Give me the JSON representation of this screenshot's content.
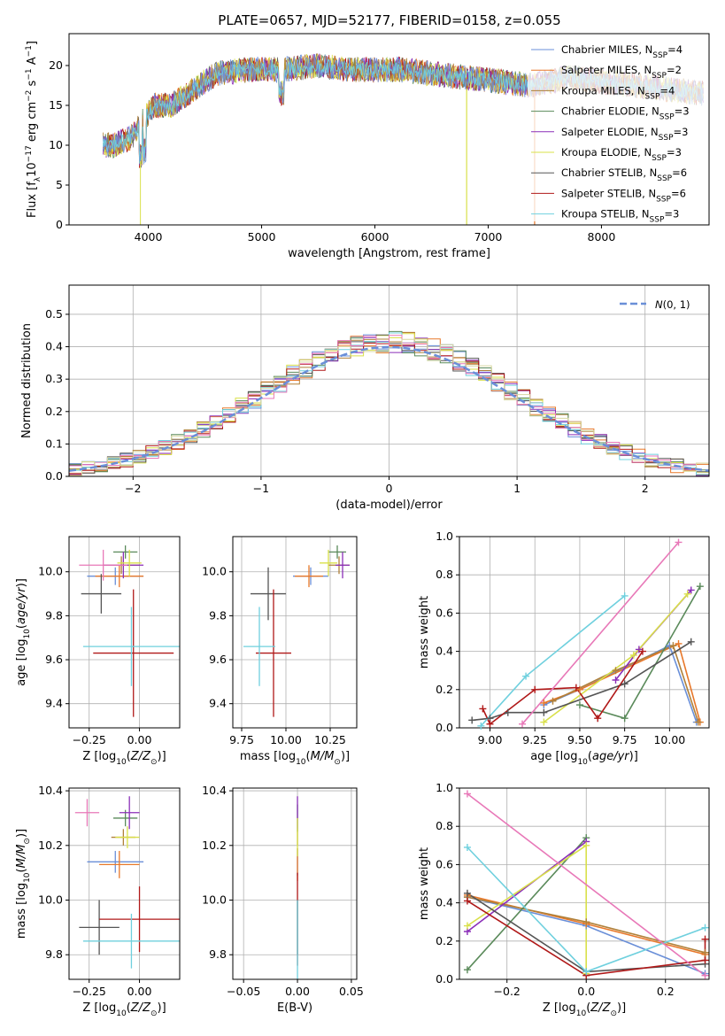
{
  "title": "PLATE=0657, MJD=52177, FIBERID=0158, z=0.055",
  "colors": [
    "#6a8fd8",
    "#e8782a",
    "#b0813a",
    "#5a8a5a",
    "#8b2fb8",
    "#d9e04a",
    "#555555",
    "#b01818",
    "#6fd0de",
    "#e878b8",
    "#d8d8a0"
  ],
  "chart_data": [
    {
      "id": "spectrum",
      "type": "line",
      "xlabel": "wavelength [Angstrom, rest frame]",
      "ylabel": "Flux [f_λ10^-17 erg cm^-2 s^-1 A^-1]",
      "xlim": [
        3300,
        8950
      ],
      "ylim": [
        0,
        24
      ],
      "xticks": [
        4000,
        5000,
        6000,
        7000,
        8000
      ],
      "yticks": [
        0,
        5,
        10,
        15,
        20
      ],
      "grid": false,
      "legend_position": "top-right",
      "legend": [
        "Chabrier MILES, N_SSP=4",
        "Salpeter MILES, N_SSP=2",
        "Kroupa MILES, N_SSP=4",
        "Chabrier ELODIE, N_SSP=3",
        "Salpeter ELODIE, N_SSP=3",
        "Kroupa ELODIE, N_SSP=3",
        "Chabrier STELIB, N_SSP=6",
        "Salpeter STELIB, N_SSP=6",
        "Kroupa STELIB, N_SSP=3"
      ],
      "continuum_points": [
        [
          3600,
          10
        ],
        [
          3700,
          10
        ],
        [
          3850,
          11
        ],
        [
          3950,
          13
        ],
        [
          4050,
          15
        ],
        [
          4200,
          15
        ],
        [
          4400,
          17
        ],
        [
          4600,
          19
        ],
        [
          4900,
          19.5
        ],
        [
          5200,
          19.5
        ],
        [
          5500,
          20
        ],
        [
          5800,
          19.5
        ],
        [
          6200,
          19.5
        ],
        [
          6500,
          19
        ],
        [
          6800,
          18.5
        ],
        [
          7100,
          18
        ],
        [
          7400,
          17.5
        ],
        [
          7700,
          18.5
        ],
        [
          8000,
          18
        ],
        [
          8300,
          17.5
        ],
        [
          8600,
          17
        ],
        [
          8900,
          16.5
        ]
      ]
    },
    {
      "id": "residuals",
      "type": "bar",
      "xlabel": "(data-model)/error",
      "ylabel": "Normed distribution",
      "xlim": [
        -2.5,
        2.5
      ],
      "ylim": [
        0,
        0.59
      ],
      "xticks": [
        -2,
        -1,
        0,
        1,
        2
      ],
      "yticks": [
        0.0,
        0.1,
        0.2,
        0.3,
        0.4,
        0.5
      ],
      "grid": true,
      "legend_position": "top-right",
      "legend": [
        "N(0,1)"
      ],
      "bin_width": 0.1,
      "reference_curve": "normal(0,1)"
    },
    {
      "id": "age-vs-Z",
      "type": "scatter",
      "xlabel": "Z [log10(Z/Z⊙)]",
      "ylabel": "age [log10(age/yr)]",
      "xlim": [
        -0.35,
        0.2
      ],
      "ylim": [
        9.29,
        10.16
      ],
      "xticks": [
        -0.25,
        0.0
      ],
      "yticks": [
        9.4,
        9.6,
        9.8,
        10.0
      ],
      "grid": true,
      "points": [
        {
          "x": -0.12,
          "y": 9.98,
          "xerr": 0.14,
          "yerr": 0.04
        },
        {
          "x": -0.1,
          "y": 9.98,
          "xerr": 0.12,
          "yerr": 0.05
        },
        {
          "x": -0.09,
          "y": 10.03,
          "xerr": 0.09,
          "yerr": 0.04
        },
        {
          "x": -0.07,
          "y": 10.09,
          "xerr": 0.06,
          "yerr": 0.03
        },
        {
          "x": -0.08,
          "y": 10.03,
          "xerr": 0.1,
          "yerr": 0.06
        },
        {
          "x": -0.05,
          "y": 10.04,
          "xerr": 0.06,
          "yerr": 0.06
        },
        {
          "x": -0.19,
          "y": 9.9,
          "xerr": 0.1,
          "yerr": 0.09
        },
        {
          "x": -0.03,
          "y": 9.63,
          "xerr": 0.2,
          "yerr": 0.29
        },
        {
          "x": -0.04,
          "y": 9.66,
          "xerr": 0.24,
          "yerr": 0.18
        },
        {
          "x": -0.18,
          "y": 10.03,
          "xerr": 0.12,
          "yerr": 0.07
        }
      ]
    },
    {
      "id": "age-vs-mass",
      "type": "scatter",
      "xlabel": "mass [log10(M/M⊙)]",
      "ylabel": "",
      "xlim": [
        9.7,
        10.4
      ],
      "ylim": [
        9.29,
        10.16
      ],
      "xticks": [
        9.75,
        10.0,
        10.25
      ],
      "yticks": [
        9.4,
        9.6,
        9.8,
        10.0
      ],
      "grid": true,
      "points": [
        {
          "x": 10.14,
          "y": 9.98,
          "xerr": 0.1,
          "yerr": 0.04
        },
        {
          "x": 10.13,
          "y": 9.98,
          "xerr": 0.08,
          "yerr": 0.05
        },
        {
          "x": 10.3,
          "y": 10.03,
          "xerr": 0.06,
          "yerr": 0.04
        },
        {
          "x": 10.29,
          "y": 10.09,
          "xerr": 0.05,
          "yerr": 0.03
        },
        {
          "x": 10.32,
          "y": 10.03,
          "xerr": 0.04,
          "yerr": 0.06
        },
        {
          "x": 10.24,
          "y": 10.04,
          "xerr": 0.05,
          "yerr": 0.06
        },
        {
          "x": 9.9,
          "y": 9.9,
          "xerr": 0.1,
          "yerr": 0.12
        },
        {
          "x": 9.93,
          "y": 9.63,
          "xerr": 0.1,
          "yerr": 0.29
        },
        {
          "x": 9.85,
          "y": 9.66,
          "xerr": 0.09,
          "yerr": 0.18
        }
      ]
    },
    {
      "id": "weight-vs-age",
      "type": "line",
      "xlabel": "age [log10(age/yr)]",
      "ylabel": "mass weight",
      "xlim": [
        8.83,
        10.22
      ],
      "ylim": [
        0,
        1.0
      ],
      "xticks": [
        9.0,
        9.25,
        9.5,
        9.75,
        10.0
      ],
      "yticks": [
        0.0,
        0.2,
        0.4,
        0.6,
        0.8,
        1.0
      ],
      "grid": true,
      "series": [
        {
          "values": [
            [
              9.3,
              0.12
            ],
            [
              9.5,
              0.2
            ],
            [
              10.0,
              0.43
            ],
            [
              10.15,
              0.03
            ]
          ]
        },
        {
          "values": [
            [
              9.3,
              0.13
            ],
            [
              9.5,
              0.2
            ],
            [
              10.05,
              0.44
            ],
            [
              10.17,
              0.03
            ]
          ]
        },
        {
          "values": [
            [
              9.35,
              0.14
            ],
            [
              9.7,
              0.3
            ],
            [
              10.02,
              0.43
            ],
            [
              10.16,
              0.03
            ]
          ]
        },
        {
          "values": [
            [
              9.5,
              0.12
            ],
            [
              9.75,
              0.05
            ],
            [
              10.17,
              0.74
            ]
          ]
        },
        {
          "values": [
            [
              9.7,
              0.25
            ],
            [
              9.83,
              0.41
            ],
            [
              10.12,
              0.72
            ]
          ]
        },
        {
          "values": [
            [
              9.3,
              0.03
            ],
            [
              9.8,
              0.38
            ],
            [
              10.1,
              0.7
            ]
          ]
        },
        {
          "values": [
            [
              8.9,
              0.04
            ],
            [
              9.0,
              0.05
            ],
            [
              9.1,
              0.08
            ],
            [
              9.3,
              0.08
            ],
            [
              9.75,
              0.23
            ],
            [
              10.12,
              0.45
            ]
          ]
        },
        {
          "values": [
            [
              8.96,
              0.1
            ],
            [
              9.0,
              0.02
            ],
            [
              9.25,
              0.2
            ],
            [
              9.48,
              0.21
            ],
            [
              9.6,
              0.05
            ],
            [
              9.85,
              0.4
            ]
          ]
        },
        {
          "values": [
            [
              8.95,
              0.01
            ],
            [
              9.2,
              0.27
            ],
            [
              9.75,
              0.69
            ]
          ]
        },
        {
          "values": [
            [
              9.18,
              0.02
            ],
            [
              10.05,
              0.97
            ]
          ]
        }
      ]
    },
    {
      "id": "mass-vs-Z",
      "type": "scatter",
      "xlabel": "Z [log10(Z/Z⊙)]",
      "ylabel": "mass [log10(M/M⊙)]",
      "xlim": [
        -0.35,
        0.2
      ],
      "ylim": [
        9.71,
        10.41
      ],
      "xticks": [
        -0.25,
        0.0
      ],
      "yticks": [
        9.8,
        10.0,
        10.2,
        10.4
      ],
      "grid": true,
      "points": [
        {
          "x": -0.12,
          "y": 10.14,
          "xerr": 0.14,
          "yerr": 0.04
        },
        {
          "x": -0.1,
          "y": 10.13,
          "xerr": 0.1,
          "yerr": 0.05
        },
        {
          "x": -0.08,
          "y": 10.23,
          "xerr": 0.06,
          "yerr": 0.03
        },
        {
          "x": -0.07,
          "y": 10.3,
          "xerr": 0.06,
          "yerr": 0.03
        },
        {
          "x": -0.05,
          "y": 10.32,
          "xerr": 0.05,
          "yerr": 0.06
        },
        {
          "x": -0.06,
          "y": 10.23,
          "xerr": 0.06,
          "yerr": 0.04
        },
        {
          "x": -0.2,
          "y": 9.9,
          "xerr": 0.1,
          "yerr": 0.1
        },
        {
          "x": 0.0,
          "y": 9.93,
          "xerr": 0.2,
          "yerr": 0.12
        },
        {
          "x": -0.04,
          "y": 9.85,
          "xerr": 0.24,
          "yerr": 0.1
        },
        {
          "x": -0.26,
          "y": 10.32,
          "xerr": 0.06,
          "yerr": 0.05
        }
      ]
    },
    {
      "id": "mass-vs-ebv",
      "type": "scatter",
      "xlabel": "E(B-V)",
      "ylabel": "",
      "xlim": [
        -0.06,
        0.055
      ],
      "ylim": [
        9.71,
        10.41
      ],
      "xticks": [
        -0.05,
        0.0,
        0.05
      ],
      "yticks": [
        9.8,
        10.0,
        10.2,
        10.4
      ],
      "grid": true,
      "points": [
        {
          "x": 0.0,
          "y": 10.14,
          "xerr": 0,
          "yerr": 0.05
        },
        {
          "x": 0.0,
          "y": 10.13,
          "xerr": 0,
          "yerr": 0.06
        },
        {
          "x": 0.0,
          "y": 10.23,
          "xerr": 0,
          "yerr": 0.03
        },
        {
          "x": 0.0,
          "y": 10.3,
          "xerr": 0,
          "yerr": 0.05
        },
        {
          "x": 0.0,
          "y": 10.32,
          "xerr": 0,
          "yerr": 0.06
        },
        {
          "x": 0.0,
          "y": 10.23,
          "xerr": 0,
          "yerr": 0.07
        },
        {
          "x": 0.0,
          "y": 9.9,
          "xerr": 0,
          "yerr": 0.1
        },
        {
          "x": 0.0,
          "y": 9.93,
          "xerr": 0,
          "yerr": 0.17
        },
        {
          "x": 0.0,
          "y": 9.85,
          "xerr": 0,
          "yerr": 0.15
        }
      ]
    },
    {
      "id": "weight-vs-Z",
      "type": "line",
      "xlabel": "Z [log10(Z/Z⊙)]",
      "ylabel": "mass weight",
      "xlim": [
        -0.32,
        0.31
      ],
      "ylim": [
        0,
        1.0
      ],
      "xticks": [
        -0.2,
        0.0,
        0.2
      ],
      "yticks": [
        0.0,
        0.2,
        0.4,
        0.6,
        0.8,
        1.0
      ],
      "grid": true,
      "series": [
        {
          "values": [
            [
              -0.3,
              0.43
            ],
            [
              0.0,
              0.28
            ],
            [
              0.3,
              0.03
            ]
          ]
        },
        {
          "values": [
            [
              -0.3,
              0.44
            ],
            [
              0.0,
              0.29
            ],
            [
              0.3,
              0.13
            ]
          ]
        },
        {
          "values": [
            [
              -0.3,
              0.43
            ],
            [
              0.0,
              0.3
            ],
            [
              0.3,
              0.14
            ]
          ]
        },
        {
          "values": [
            [
              -0.3,
              0.05
            ],
            [
              0.0,
              0.74
            ]
          ]
        },
        {
          "values": [
            [
              -0.3,
              0.25
            ],
            [
              0.0,
              0.72
            ]
          ]
        },
        {
          "values": [
            [
              -0.3,
              0.28
            ],
            [
              0.0,
              0.7
            ],
            [
              0.0,
              0.03
            ]
          ]
        },
        {
          "values": [
            [
              -0.3,
              0.45
            ],
            [
              0.0,
              0.04
            ],
            [
              0.3,
              0.08
            ]
          ]
        },
        {
          "values": [
            [
              -0.3,
              0.41
            ],
            [
              0.0,
              0.02
            ],
            [
              0.3,
              0.1
            ],
            [
              0.3,
              0.21
            ]
          ]
        },
        {
          "values": [
            [
              -0.3,
              0.69
            ],
            [
              0.0,
              0.04
            ],
            [
              0.3,
              0.27
            ]
          ]
        },
        {
          "values": [
            [
              -0.3,
              0.97
            ],
            [
              0.3,
              0.02
            ]
          ]
        }
      ]
    }
  ]
}
